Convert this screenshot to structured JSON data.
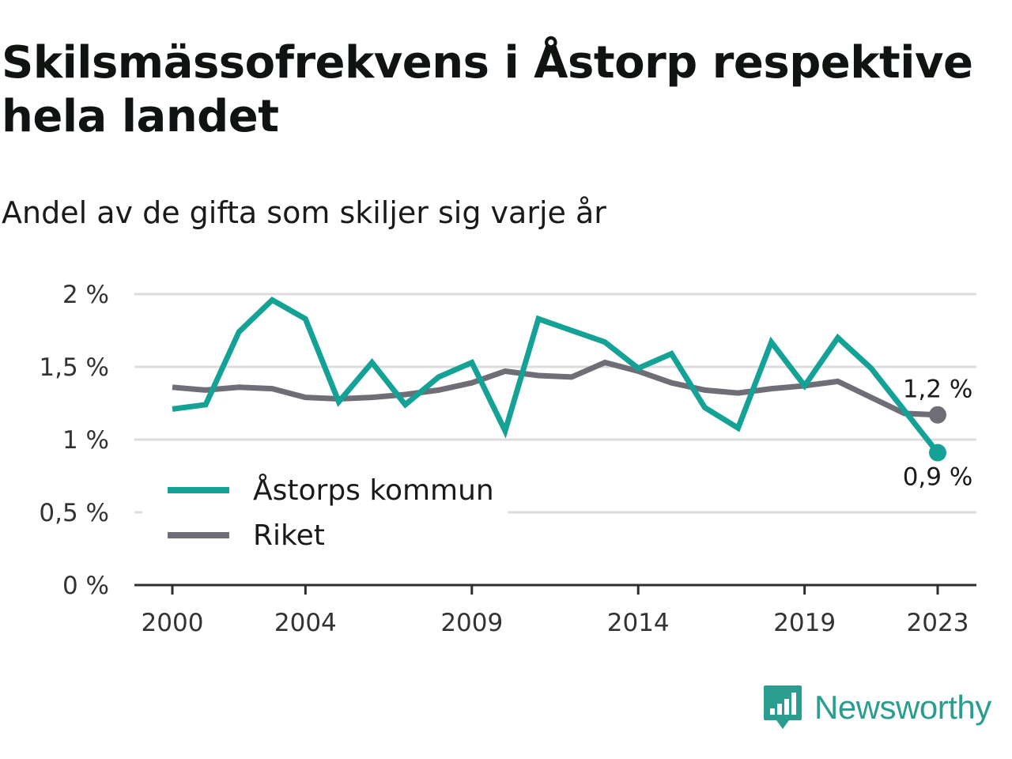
{
  "title": "Skilsmässofrekvens i Åstorp respektive hela landet",
  "subtitle": "Andel av de gifta som skiljer sig varje år",
  "brand": {
    "name": "Newsworthy",
    "logo_icon": "newsworthy-chart-logo-icon",
    "color": "#2a9d8f"
  },
  "chart_data": {
    "type": "line",
    "title": "Skilsmässofrekvens i Åstorp respektive hela landet",
    "subtitle": "Andel av de gifta som skiljer sig varje år",
    "xlabel": "",
    "ylabel": "",
    "xlim": [
      2000,
      2023
    ],
    "ylim": [
      0,
      2
    ],
    "x_ticks": [
      2000,
      2004,
      2009,
      2014,
      2019,
      2023
    ],
    "y_ticks": [
      {
        "value": 0,
        "label": "0 %"
      },
      {
        "value": 0.5,
        "label": "0,5 %"
      },
      {
        "value": 1,
        "label": "1 %"
      },
      {
        "value": 1.5,
        "label": "1,5 %"
      },
      {
        "value": 2,
        "label": "2 %"
      }
    ],
    "grid": true,
    "legend_position": "bottom-left",
    "x": [
      2000,
      2001,
      2002,
      2003,
      2004,
      2005,
      2006,
      2007,
      2008,
      2009,
      2010,
      2011,
      2012,
      2013,
      2014,
      2015,
      2016,
      2017,
      2018,
      2019,
      2020,
      2021,
      2022,
      2023
    ],
    "series": [
      {
        "name": "Åstorps kommun",
        "color": "#15a296",
        "values": [
          1.21,
          1.24,
          1.74,
          1.96,
          1.83,
          1.26,
          1.53,
          1.24,
          1.43,
          1.53,
          1.06,
          1.83,
          1.75,
          1.67,
          1.49,
          1.59,
          1.22,
          1.08,
          1.67,
          1.37,
          1.7,
          1.49,
          1.2,
          0.91
        ],
        "end_label": "0,9 %"
      },
      {
        "name": "Riket",
        "color": "#6f6e76",
        "values": [
          1.36,
          1.34,
          1.36,
          1.35,
          1.29,
          1.28,
          1.29,
          1.31,
          1.34,
          1.39,
          1.47,
          1.44,
          1.43,
          1.53,
          1.47,
          1.39,
          1.34,
          1.32,
          1.35,
          1.37,
          1.4,
          1.29,
          1.18,
          1.17
        ],
        "end_label": "1,2 %"
      }
    ]
  }
}
